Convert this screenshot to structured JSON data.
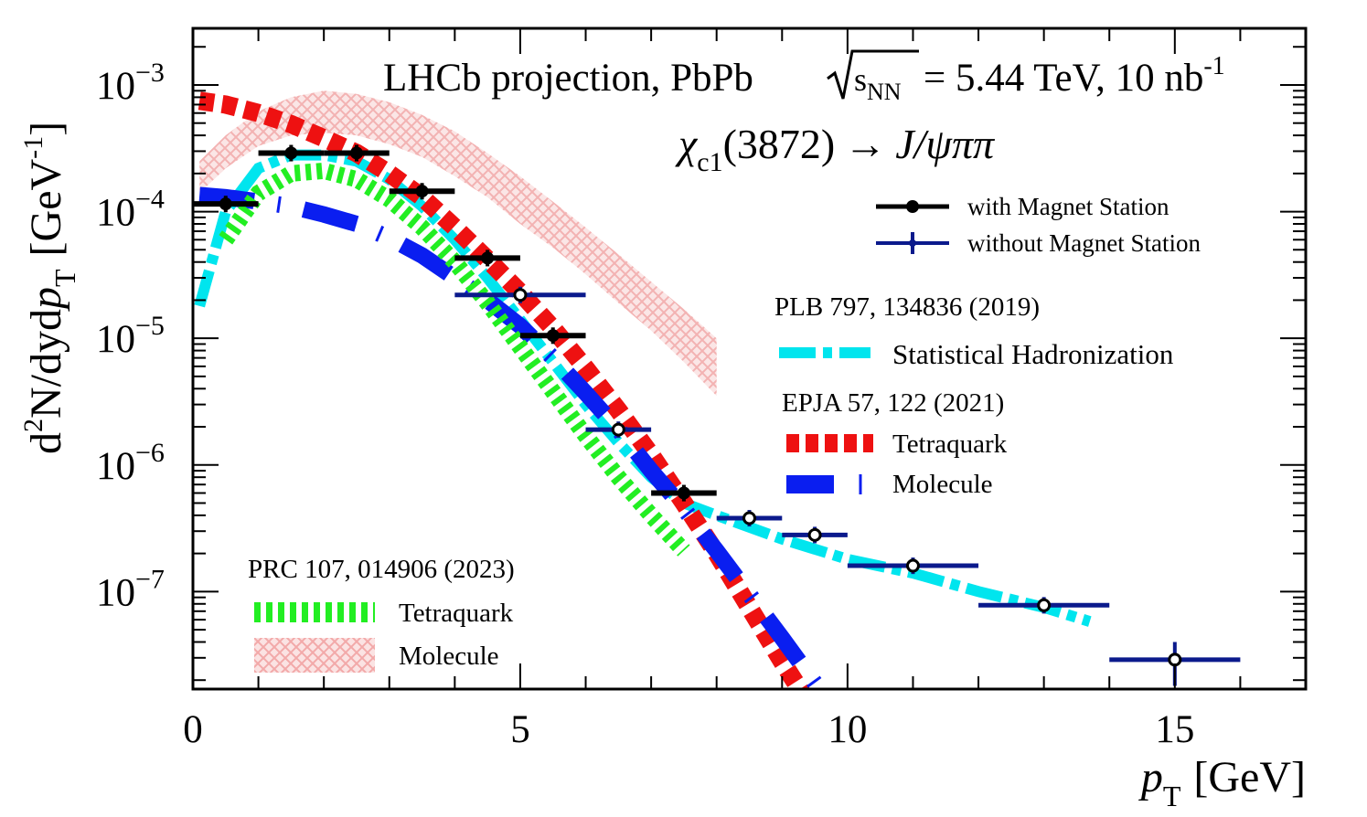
{
  "chart_data": {
    "type": "scatter",
    "yscale": "log",
    "xlim": [
      0,
      17
    ],
    "ylim": [
      1.7e-08,
      0.0028
    ],
    "xlabel": {
      "main": "p",
      "sub": "T",
      "unit": "[GeV]"
    },
    "ylabel": {
      "pre": "d",
      "sup": "2",
      "mid": "N/dyd",
      "p": "p",
      "sub": "T",
      "unit": "[GeV",
      "unit_sup": "-1",
      "close": "]"
    },
    "x_ticks": [
      {
        "value": 0,
        "label": "0"
      },
      {
        "value": 5,
        "label": "5"
      },
      {
        "value": 10,
        "label": "10"
      },
      {
        "value": 15,
        "label": "15"
      }
    ],
    "y_ticks": [
      {
        "value": 0.001,
        "base": "10",
        "exp": "−3"
      },
      {
        "value": 0.0001,
        "base": "10",
        "exp": "−4"
      },
      {
        "value": 1e-05,
        "base": "10",
        "exp": "−5"
      },
      {
        "value": 1e-06,
        "base": "10",
        "exp": "−6"
      },
      {
        "value": 1e-07,
        "base": "10",
        "exp": "−7"
      }
    ],
    "title": {
      "main": "LHCb projection, PbPb",
      "sqrt_s": "s",
      "sqrt_sub": "NN",
      "energy": "= 5.44 TeV, 10 nb",
      "lumi_sup": "-1"
    },
    "decay": {
      "chi": "χ",
      "chi_sub": "c1",
      "mass": "(3872)",
      "arrow": "→",
      "products": "J/ψππ"
    },
    "series": [
      {
        "name": "with Magnet Station",
        "color": "#000000",
        "points": [
          {
            "x": 0.5,
            "xerr": 0.5,
            "y": 0.000115
          },
          {
            "x": 1.5,
            "xerr": 0.5,
            "y": 0.00029
          },
          {
            "x": 2.5,
            "xerr": 0.5,
            "y": 0.00029
          },
          {
            "x": 3.5,
            "xerr": 0.5,
            "y": 0.000145
          },
          {
            "x": 4.5,
            "xerr": 0.5,
            "y": 4.3e-05
          },
          {
            "x": 5.5,
            "xerr": 0.5,
            "y": 1.05e-05
          },
          {
            "x": 7.5,
            "xerr": 0.5,
            "y": 6e-07
          }
        ]
      },
      {
        "name": "without Magnet Station",
        "color": "#0b1a8c",
        "points": [
          {
            "x": 5.0,
            "xerr": 1.0,
            "y": 2.2e-05
          },
          {
            "x": 6.5,
            "xerr": 0.5,
            "y": 1.9e-06
          },
          {
            "x": 8.5,
            "xerr": 0.5,
            "y": 3.8e-07
          },
          {
            "x": 9.5,
            "xerr": 0.5,
            "y": 2.8e-07
          },
          {
            "x": 11.0,
            "xerr": 1.0,
            "y": 1.6e-07
          },
          {
            "x": 13.0,
            "xerr": 1.0,
            "y": 7.8e-08
          },
          {
            "x": 15.0,
            "xerr": 1.0,
            "y": 2.9e-08,
            "ylo": 1.8e-08,
            "yhi": 4e-08
          }
        ]
      }
    ],
    "models": [
      {
        "name": "Statistical Hadronization",
        "ref": "PLB 797, 134836 (2019)",
        "style": "dashdot",
        "color": "#00e5ee",
        "x": [
          0.1,
          0.5,
          1.0,
          1.5,
          2.0,
          2.5,
          3.0,
          3.5,
          4.0,
          4.5,
          5.0,
          5.5,
          6.0,
          6.5,
          7.0,
          7.5,
          8.0,
          9.0,
          10.0,
          11.0,
          12.0,
          13.0,
          13.7
        ],
        "y": [
          1.8e-05,
          0.0001,
          0.00022,
          0.00028,
          0.00028,
          0.00025,
          0.00018,
          0.00011,
          6e-05,
          3e-05,
          1.4e-05,
          6.5e-06,
          3e-06,
          1.5e-06,
          8e-07,
          5e-07,
          4e-07,
          2.6e-07,
          1.8e-07,
          1.4e-07,
          1e-07,
          7.5e-08,
          5.8e-08
        ]
      },
      {
        "name": "Tetraquark",
        "ref": "EPJA 57, 122 (2021)",
        "style": "dashed",
        "color": "#ee1111",
        "x": [
          0.1,
          0.5,
          1.0,
          1.5,
          2.0,
          2.5,
          3.0,
          3.5,
          4.0,
          4.5,
          5.0,
          5.5,
          6.0,
          6.5,
          7.0,
          7.5,
          8.0,
          8.5,
          9.0,
          9.3
        ],
        "y": [
          0.00075,
          0.0007,
          0.0006,
          0.00049,
          0.00038,
          0.00029,
          0.0002,
          0.00013,
          7.5e-05,
          4.2e-05,
          2.3e-05,
          1.2e-05,
          5.8e-06,
          2.7e-06,
          1.2e-06,
          5e-07,
          2e-07,
          7.5e-08,
          2.8e-08,
          1.6e-08
        ]
      },
      {
        "name": "Molecule",
        "ref": "EPJA 57, 122 (2021)",
        "style": "longdash",
        "color": "#0a1ef0",
        "x": [
          0.1,
          0.5,
          1.0,
          1.5,
          2.0,
          2.5,
          3.0,
          3.5,
          4.0,
          4.5,
          5.0,
          5.5,
          6.0,
          6.5,
          7.0,
          7.5,
          8.0,
          8.5,
          9.0,
          9.5
        ],
        "y": [
          0.000135,
          0.00013,
          0.00012,
          0.00011,
          9.5e-05,
          8e-05,
          6.2e-05,
          4.5e-05,
          3e-05,
          2e-05,
          1.25e-05,
          7e-06,
          3.7e-06,
          1.9e-06,
          9e-07,
          4.5e-07,
          2.1e-07,
          9.5e-08,
          4.3e-08,
          1.9e-08
        ]
      },
      {
        "name": "Tetraquark",
        "ref": "PRC 107, 014906 (2023)",
        "style": "dotted",
        "color": "#22ee22",
        "x": [
          0.5,
          1.0,
          1.5,
          2.0,
          2.5,
          3.0,
          3.5,
          4.0,
          4.5,
          5.0,
          5.5,
          6.0,
          6.5,
          7.0,
          7.5
        ],
        "y": [
          6e-05,
          0.00014,
          0.0002,
          0.00021,
          0.00018,
          0.000125,
          7.5e-05,
          4e-05,
          1.9e-05,
          8.5e-06,
          3.8e-06,
          1.7e-06,
          8e-07,
          4e-07,
          2.1e-07
        ]
      },
      {
        "name": "Molecule",
        "ref": "PRC 107, 014906 (2023)",
        "style": "band",
        "color": "#f4b6b6",
        "x": [
          0.1,
          0.5,
          1.0,
          1.5,
          2.0,
          2.5,
          3.0,
          3.5,
          4.0,
          4.5,
          5.0,
          5.5,
          6.0,
          6.5,
          7.0,
          7.5,
          8.0
        ],
        "ylo": [
          0.00014,
          0.00022,
          0.00033,
          0.0004,
          0.00042,
          0.0004,
          0.00034,
          0.00027,
          0.00019,
          0.00013,
          8e-05,
          5.2e-05,
          3.2e-05,
          1.9e-05,
          1.15e-05,
          6.5e-06,
          3.5e-06
        ],
        "yhi": [
          0.00025,
          0.0004,
          0.00062,
          0.0008,
          0.0009,
          0.00085,
          0.00073,
          0.00058,
          0.00043,
          0.00029,
          0.00019,
          0.00012,
          7.5e-05,
          4.6e-05,
          2.8e-05,
          1.7e-05,
          1e-05
        ]
      }
    ],
    "legend_headers": {
      "plb": "PLB 797, 134836 (2019)",
      "epja": "EPJA 57, 122 (2021)",
      "prc": "PRC 107, 014906 (2023)"
    }
  }
}
